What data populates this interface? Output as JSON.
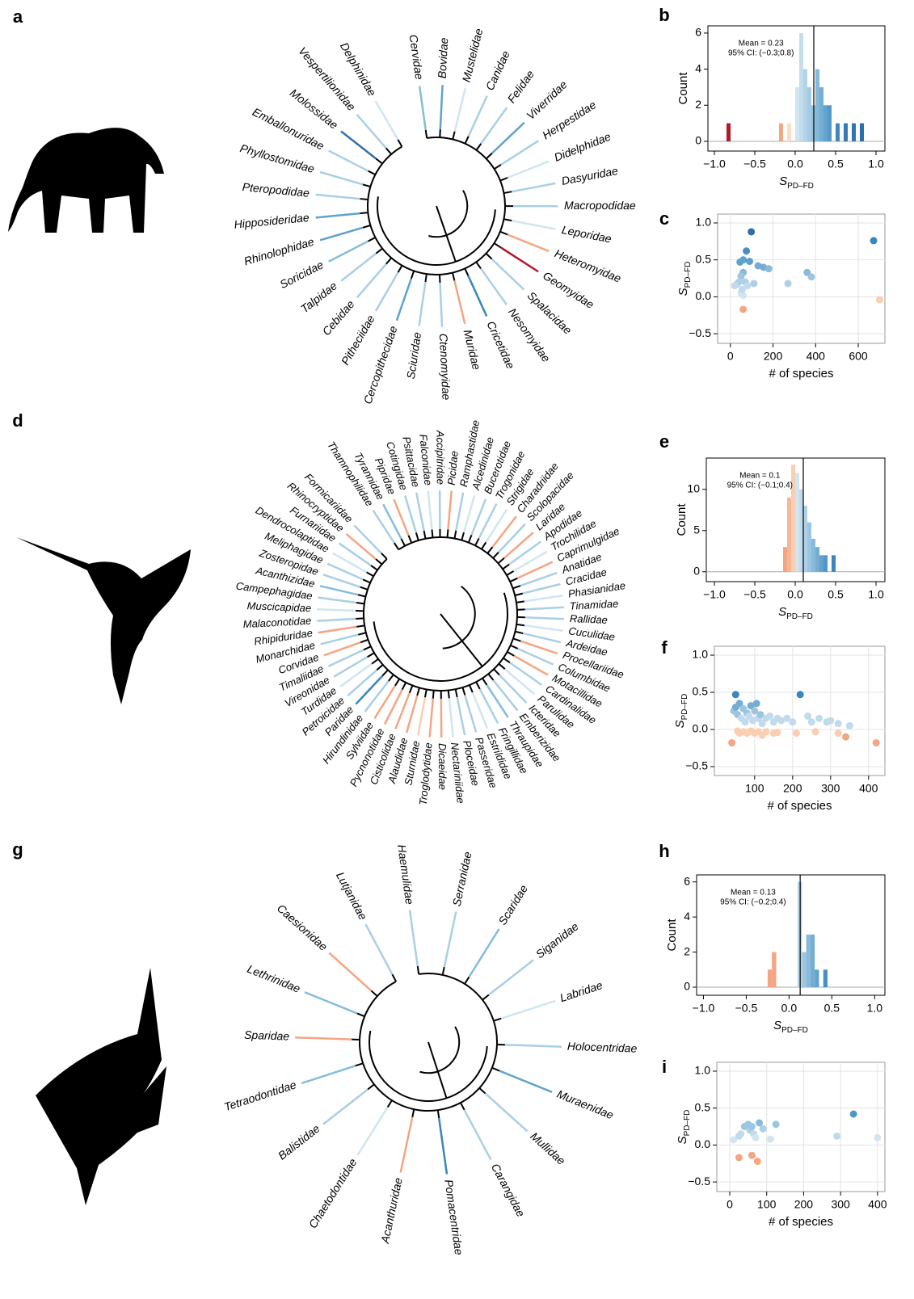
{
  "chart_data": [
    {
      "type": "dendrogram",
      "panel": "a",
      "labels": [
        "Cervidae",
        "Bovidae",
        "Mustelidae",
        "Canidae",
        "Felidae",
        "Viverridae",
        "Herpestidae",
        "Didelphidae",
        "Dasyuridae",
        "Macropodidae",
        "Leporidae",
        "Heteromyidae",
        "Geomyidae",
        "Spalacidae",
        "Nesomyidae",
        "Cricetidae",
        "Muridae",
        "Ctenomyidae",
        "Sciuridae",
        "Cercopithecidae",
        "Pitheciidae",
        "Cebidae",
        "Talpidae",
        "Soricidae",
        "Rhinolophidae",
        "Hipposideridae",
        "Pteropodidae",
        "Phyllostomidae",
        "Emballonuridae",
        "Molossidae",
        "Vespertilionidae",
        "Delphinidae"
      ],
      "colors": [
        "#85bcdb",
        "#5ea3cc",
        "#d1e5f0",
        "#a9cfe5",
        "#a9cfe5",
        "#5ea3cc",
        "#a9cfe5",
        "#d1e5f0",
        "#a9cfe5",
        "#a9cfe5",
        "#d1e5f0",
        "#f4a582",
        "#b2182b",
        "#a9cfe5",
        "#a9cfe5",
        "#3a85bb",
        "#f4a582",
        "#a9cfe5",
        "#a9cfe5",
        "#5ea3cc",
        "#a9cfe5",
        "#a9cfe5",
        "#a9cfe5",
        "#85bcdb",
        "#5ea3cc",
        "#5ea3cc",
        "#a9cfe5",
        "#a9cfe5",
        "#a9cfe5",
        "#2c6fae",
        "#a9cfe5",
        "#d1e5f0"
      ]
    },
    {
      "type": "histogram",
      "panel": "b",
      "ylabel": "Count",
      "xlabel": "S",
      "xlabel_sub": "PD–FD",
      "mean": 0.23,
      "mean_label": "Mean = 0.23",
      "ci_label": "95% CI: (−0.3;0.8)",
      "bins": [
        -0.85,
        -0.8,
        -0.75,
        -0.7,
        -0.65,
        -0.6,
        -0.55,
        -0.5,
        -0.45,
        -0.4,
        -0.35,
        -0.3,
        -0.25,
        -0.2,
        -0.15,
        -0.1,
        -0.05,
        0,
        0.05,
        0.1,
        0.15,
        0.2,
        0.25,
        0.3,
        0.35,
        0.4,
        0.45,
        0.5,
        0.55,
        0.6,
        0.65,
        0.7,
        0.75,
        0.8,
        0.85,
        0.9
      ],
      "values": [
        1,
        0,
        0,
        0,
        0,
        0,
        0,
        0,
        0,
        0,
        0,
        0,
        0,
        1,
        0,
        1,
        0,
        3,
        6,
        4,
        3,
        2,
        4,
        3,
        2,
        2,
        0,
        1,
        0,
        1,
        0,
        1,
        0,
        1,
        0
      ],
      "colors": [
        "#b2182b",
        "#d6604d",
        "#d6604d",
        "#d6604d",
        "#d6604d",
        "#d6604d",
        "#d6604d",
        "#d6604d",
        "#d6604d",
        "#d6604d",
        "#d6604d",
        "#d6604d",
        "#d6604d",
        "#f4a582",
        "#f4a582",
        "#fddbc7",
        "#fddbc7",
        "#d1e5f0",
        "#c4ddec",
        "#b2d3e8",
        "#a3cbe4",
        "#93c2df",
        "#84b9da",
        "#73aed4",
        "#64a3cd",
        "#5699c7",
        "#4a8fc1",
        "#4086bc",
        "#3a85bb",
        "#3679b5",
        "#3679b5",
        "#3075b2",
        "#3075b2",
        "#2c6fae",
        "#2c6fae"
      ],
      "xlim": [
        -1.08,
        1.11
      ],
      "ylim": [
        -0.54,
        6.4
      ],
      "xticks": [
        {
          "value": -1,
          "label": "−1.0"
        },
        {
          "value": -0.5,
          "label": "−0.5"
        },
        {
          "value": 0,
          "label": "0.0"
        },
        0.5,
        {
          "value": 1,
          "label": "1.0"
        }
      ],
      "yticks": [
        0,
        2,
        4,
        6
      ]
    },
    {
      "type": "scatter",
      "panel": "c",
      "ylabel": "S",
      "ylabel_sub": "PD–FD",
      "xlabel": "# of species",
      "grid": true,
      "x": [
        98,
        672,
        75,
        45,
        60,
        90,
        130,
        155,
        180,
        60,
        50,
        40,
        30,
        70,
        80,
        50,
        60,
        55,
        20,
        360,
        380,
        270,
        110,
        60,
        700
      ],
      "values": [
        0.88,
        0.76,
        0.62,
        0.47,
        0.5,
        0.48,
        0.42,
        0.4,
        0.38,
        0.33,
        0.28,
        0.2,
        0.17,
        0.2,
        0.15,
        0.05,
        0.02,
        0.1,
        0.15,
        0.33,
        0.27,
        0.18,
        0.18,
        -0.17,
        -0.04
      ],
      "colors": [
        "#2c6fae",
        "#3a85bb",
        "#4a8fc1",
        "#5ea3cc",
        "#5ea3cc",
        "#5ea3cc",
        "#76aed3",
        "#76aed3",
        "#88bad9",
        "#88bad9",
        "#9cc6e0",
        "#aed0e6",
        "#aed0e6",
        "#aed0e6",
        "#c1dbec",
        "#d1e5f0",
        "#d1e5f0",
        "#c1dbec",
        "#c1dbec",
        "#88bad9",
        "#9cc6e0",
        "#aed0e6",
        "#aed0e6",
        "#f4a582",
        "#fbcdb3"
      ],
      "xlim": [
        -60,
        725
      ],
      "ylim": [
        -0.63,
        1.12
      ],
      "xticks": [
        0,
        200,
        400,
        600
      ],
      "yticks": [
        {
          "value": -0.5,
          "label": "−0.5"
        },
        {
          "value": 0,
          "label": "0.0"
        },
        0.5,
        {
          "value": 1,
          "label": "1.0"
        }
      ]
    },
    {
      "type": "dendrogram",
      "panel": "d",
      "labels": [
        "Thamnophilidae",
        "Tyrannidae",
        "Pipridae",
        "Cotingidae",
        "Psittacidae",
        "Falconidae",
        "Accipitridae",
        "Picidae",
        "Ramphastidae",
        "Alcedinidae",
        "Bucerotidae",
        "Trogonidae",
        "Strigidae",
        "Charadriidae",
        "Scolopacidae",
        "Laridae",
        "Apodidae",
        "Trochilidae",
        "Caprimulgidae",
        "Anatidae",
        "Cracidae",
        "Phasianidae",
        "Tinamidae",
        "Rallidae",
        "Cuculidae",
        "Ardeidae",
        "Procellariidae",
        "Columbidae",
        "Motacillidae",
        "Cardinalidae",
        "Parulidae",
        "Icteridae",
        "Emberizidae",
        "Thraupidae",
        "Fringillidae",
        "Estrildidae",
        "Passeridae",
        "Ploceidae",
        "Nectariniidae",
        "Dicaeidae",
        "Troglodytidae",
        "Sturnidae",
        "Alaudidae",
        "Cisticolidae",
        "Pycnonotidae",
        "Sylviidae",
        "Hirundinidae",
        "Paridae",
        "Petroicidae",
        "Turdidae",
        "Vireonidae",
        "Timaliidae",
        "Corvidae",
        "Monarchidae",
        "Rhipiduridae",
        "Malaconotidae",
        "Muscicapidae",
        "Campephagidae",
        "Acanthizidae",
        "Zosteropidae",
        "Meliphagidae",
        "Dendrocolaptidae",
        "Furnariidae",
        "Rhinocryptidae",
        "Formicariidae"
      ],
      "colors": [
        "#a9cfe5",
        "#85bcdb",
        "#f4a582",
        "#a9cfe5",
        "#a9cfe5",
        "#d1e5f0",
        "#a9cfe5",
        "#f4a582",
        "#a9cfe5",
        "#d1e5f0",
        "#a9cfe5",
        "#a9cfe5",
        "#d1e5f0",
        "#f4a582",
        "#a9cfe5",
        "#f4a582",
        "#a9cfe5",
        "#d1e5f0",
        "#f4a582",
        "#a9cfe5",
        "#a9cfe5",
        "#d1e5f0",
        "#a9cfe5",
        "#a9cfe5",
        "#d1e5f0",
        "#a9cfe5",
        "#f4a582",
        "#a9cfe5",
        "#f4a582",
        "#a9cfe5",
        "#d1e5f0",
        "#a9cfe5",
        "#a9cfe5",
        "#85bcdb",
        "#a9cfe5",
        "#d1e5f0",
        "#a9cfe5",
        "#a9cfe5",
        "#d1e5f0",
        "#f4a582",
        "#f4a582",
        "#fbcdb3",
        "#f4a582",
        "#f4a582",
        "#f4a582",
        "#f4a582",
        "#a9cfe5",
        "#3a85bb",
        "#a9cfe5",
        "#d1e5f0",
        "#a9cfe5",
        "#a9cfe5",
        "#f4a582",
        "#a9cfe5",
        "#f4a582",
        "#a9cfe5",
        "#d1e5f0",
        "#a9cfe5",
        "#85bcdb",
        "#a9cfe5",
        "#a9cfe5",
        "#d1e5f0",
        "#a9cfe5",
        "#f4a582",
        "#a9cfe5"
      ]
    },
    {
      "type": "histogram",
      "panel": "e",
      "ylabel": "Count",
      "xlabel": "S",
      "xlabel_sub": "PD–FD",
      "mean": 0.1,
      "mean_label": "Mean = 0.1",
      "ci_label": "95% CI: (−0.1;0.4)",
      "bins": [
        -0.15,
        -0.1,
        -0.05,
        0,
        0.05,
        0.1,
        0.15,
        0.2,
        0.25,
        0.3,
        0.35,
        0.4,
        0.45,
        0.5
      ],
      "values": [
        3,
        9,
        13,
        12,
        10,
        8,
        6,
        4,
        3,
        2,
        2,
        0,
        2
      ],
      "colors": [
        "#f4a582",
        "#f7b797",
        "#fbcdb3",
        "#d1e5f0",
        "#c1dbec",
        "#aed0e6",
        "#9cc6e0",
        "#88bad9",
        "#76aed3",
        "#63a2cc",
        "#5097c5",
        "#4a8fc1",
        "#3a85bb"
      ],
      "xlim": [
        -1.1,
        1.11
      ],
      "ylim": [
        -1.2,
        13.8
      ],
      "xticks": [
        {
          "value": -1,
          "label": "−1.0"
        },
        {
          "value": -0.5,
          "label": "−0.5"
        },
        {
          "value": 0,
          "label": "0.0"
        },
        0.5,
        {
          "value": 1,
          "label": "1.0"
        }
      ],
      "yticks": [
        0,
        5,
        10
      ]
    },
    {
      "type": "scatter",
      "panel": "f",
      "ylabel": "S",
      "ylabel_sub": "PD–FD",
      "xlabel": "# of species",
      "grid": true,
      "x": [
        50,
        220,
        45,
        50,
        55,
        60,
        65,
        70,
        75,
        80,
        85,
        90,
        95,
        100,
        105,
        110,
        115,
        120,
        130,
        140,
        150,
        160,
        170,
        185,
        200,
        240,
        250,
        270,
        290,
        300,
        320,
        350,
        40,
        55,
        60,
        70,
        80,
        90,
        100,
        110,
        120,
        130,
        150,
        160,
        210,
        260,
        320,
        340,
        420
      ],
      "values": [
        0.47,
        0.47,
        0.25,
        0.3,
        0.2,
        0.35,
        0.15,
        0.28,
        0.1,
        0.22,
        0.18,
        0.32,
        0.12,
        0.25,
        0.35,
        0.15,
        0.2,
        0.08,
        0.15,
        0.18,
        0.1,
        0.15,
        0.12,
        0.15,
        0.1,
        0.18,
        0.1,
        0.15,
        0.1,
        0.12,
        0.08,
        0.05,
        -0.18,
        -0.02,
        -0.05,
        -0.03,
        -0.05,
        -0.02,
        -0.05,
        -0.03,
        -0.08,
        -0.03,
        -0.05,
        -0.04,
        -0.05,
        -0.03,
        -0.05,
        -0.1,
        -0.18
      ],
      "colors": [
        "#3a85bb",
        "#3a85bb",
        "#9cc6e0",
        "#76aed3",
        "#9cc6e0",
        "#76aed3",
        "#c1dbec",
        "#9cc6e0",
        "#c1dbec",
        "#9cc6e0",
        "#c1dbec",
        "#76aed3",
        "#c1dbec",
        "#9cc6e0",
        "#76aed3",
        "#c1dbec",
        "#9cc6e0",
        "#c1dbec",
        "#c1dbec",
        "#c1dbec",
        "#c1dbec",
        "#c1dbec",
        "#c1dbec",
        "#c1dbec",
        "#c1dbec",
        "#c1dbec",
        "#c1dbec",
        "#c1dbec",
        "#c1dbec",
        "#c1dbec",
        "#c1dbec",
        "#c1dbec",
        "#f4a582",
        "#fbcdb3",
        "#fbcdb3",
        "#fbcdb3",
        "#fbcdb3",
        "#fbcdb3",
        "#fbcdb3",
        "#fbcdb3",
        "#fbcdb3",
        "#fbcdb3",
        "#fbcdb3",
        "#fbcdb3",
        "#fbcdb3",
        "#fbcdb3",
        "#fbcdb3",
        "#f4a582",
        "#f4a582"
      ],
      "xlim": [
        -6,
        443
      ],
      "ylim": [
        -0.62,
        1.12
      ],
      "xticks": [
        100,
        200,
        300,
        400
      ],
      "yticks": [
        {
          "value": -0.5,
          "label": "−0.5"
        },
        {
          "value": 0,
          "label": "0.0"
        },
        0.5,
        {
          "value": 1,
          "label": "1.0"
        }
      ]
    },
    {
      "type": "dendrogram",
      "panel": "g",
      "labels": [
        "Haemulidae",
        "Serranidae",
        "Scaridae",
        "Siganidae",
        "Labridae",
        "Holocentridae",
        "Muraenidae",
        "Mullidae",
        "Carangidae",
        "Pomacentridae",
        "Acanthuridae",
        "Chaetodontidae",
        "Balistidae",
        "Tetraodontidae",
        "Sparidae",
        "Lethrinidae",
        "Caesionidae",
        "Lutjanidae"
      ],
      "colors": [
        "#a9cfe5",
        "#a9cfe5",
        "#85bcdb",
        "#a9cfe5",
        "#d1e5f0",
        "#a9cfe5",
        "#5ea3cc",
        "#a9cfe5",
        "#a9cfe5",
        "#3a85bb",
        "#f4a582",
        "#d1e5f0",
        "#a9cfe5",
        "#85bcdb",
        "#f4a582",
        "#85bcdb",
        "#f4a582",
        "#a9cfe5"
      ]
    },
    {
      "type": "histogram",
      "panel": "h",
      "ylabel": "Count",
      "xlabel": "S",
      "xlabel_sub": "PD–FD",
      "mean": 0.13,
      "mean_label": "Mean = 0.13",
      "ci_label": "95% CI: (−0.2;0.4)",
      "bins": [
        -0.25,
        -0.2,
        -0.15,
        -0.1,
        -0.05,
        0,
        0.05,
        0.1,
        0.15,
        0.2,
        0.25,
        0.3,
        0.35,
        0.4,
        0.45
      ],
      "values": [
        1,
        2,
        0,
        0,
        0,
        0,
        0,
        6,
        2,
        3,
        3,
        1,
        0,
        1
      ],
      "colors": [
        "#f4a582",
        "#f4a582",
        "#f4a582",
        "#fbcdb3",
        "#fbcdb3",
        "#d1e5f0",
        "#c1dbec",
        "#b2d3e8",
        "#9cc6e0",
        "#88bad9",
        "#76aed3",
        "#63a2cc",
        "#5097c5",
        "#4a8fc1"
      ],
      "xlim": [
        -1.08,
        1.12
      ],
      "ylim": [
        -0.46,
        6.4
      ],
      "xticks": [
        {
          "value": -1,
          "label": "−1.0"
        },
        {
          "value": -0.5,
          "label": "−0.5"
        },
        {
          "value": 0,
          "label": "0.0"
        },
        0.5,
        {
          "value": 1,
          "label": "1.0"
        }
      ],
      "yticks": [
        0,
        2,
        4,
        6
      ]
    },
    {
      "type": "scatter",
      "panel": "i",
      "ylabel": "S",
      "ylabel_sub": "PD–FD",
      "xlabel": "# of species",
      "grid": true,
      "x": [
        335,
        10,
        25,
        30,
        40,
        50,
        55,
        60,
        65,
        70,
        80,
        90,
        110,
        125,
        290,
        400,
        25,
        60,
        75
      ],
      "values": [
        0.42,
        0.07,
        0.12,
        0.15,
        0.25,
        0.28,
        0.2,
        0.25,
        0.15,
        0.1,
        0.3,
        0.22,
        0.08,
        0.28,
        0.12,
        0.1,
        -0.17,
        -0.14,
        -0.22
      ],
      "colors": [
        "#5097c5",
        "#d1e5f0",
        "#c1dbec",
        "#c1dbec",
        "#9cc6e0",
        "#9cc6e0",
        "#aed0e6",
        "#9cc6e0",
        "#c1dbec",
        "#d1e5f0",
        "#88bad9",
        "#aed0e6",
        "#d1e5f0",
        "#9cc6e0",
        "#c1dbec",
        "#d1e5f0",
        "#f4a582",
        "#f4a582",
        "#f4a582"
      ],
      "xlim": [
        -35,
        420
      ],
      "ylim": [
        -0.63,
        1.12
      ],
      "xticks": [
        0,
        100,
        200,
        300,
        400
      ],
      "yticks": [
        {
          "value": -0.5,
          "label": "−0.5"
        },
        {
          "value": 0,
          "label": "0.0"
        },
        0.5,
        {
          "value": 1,
          "label": "1.0"
        }
      ]
    }
  ]
}
